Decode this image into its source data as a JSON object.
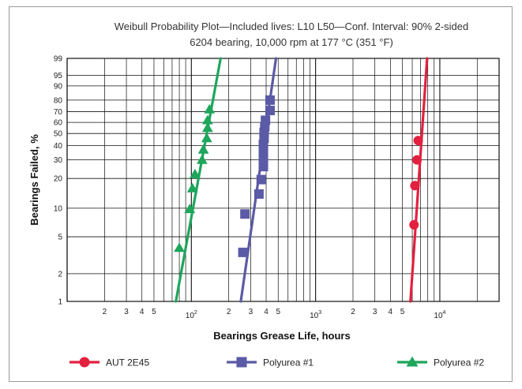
{
  "chart_data": {
    "type": "scatter",
    "title": "Weibull Probability Plot—Included lives: L10 L50—Conf. Interval: 90% 2-sided",
    "subtitle": "6204 bearing, 10,000 rpm at 177 °C (351 °F)",
    "xlabel": "Bearings Grease Life, hours",
    "ylabel": "Bearings Failed, %",
    "x_scale": "log",
    "y_scale": "weibull",
    "xlim": [
      10,
      30000
    ],
    "ylim": [
      1,
      99
    ],
    "grid": true,
    "legend_position": "bottom",
    "y_ticks": [
      1,
      2,
      5,
      10,
      20,
      30,
      40,
      50,
      60,
      70,
      80,
      90,
      95,
      99
    ],
    "y_tick_labels": [
      "1",
      "2",
      "5",
      "10",
      "20",
      "30",
      "40",
      "50",
      "60",
      "70",
      "80",
      "90",
      "95",
      "99"
    ],
    "x_major_ticks": [
      {
        "value": 100,
        "base": "10",
        "exp": "2"
      },
      {
        "value": 1000,
        "base": "10",
        "exp": "3"
      },
      {
        "value": 10000,
        "base": "10",
        "exp": "4"
      }
    ],
    "x_minor_ticks": [
      {
        "value": 20,
        "label": "2"
      },
      {
        "value": 30,
        "label": "3"
      },
      {
        "value": 40,
        "label": "4"
      },
      {
        "value": 50,
        "label": "5"
      },
      {
        "value": 200,
        "label": "2"
      },
      {
        "value": 300,
        "label": "3"
      },
      {
        "value": 400,
        "label": "4"
      },
      {
        "value": 500,
        "label": "5"
      },
      {
        "value": 2000,
        "label": "2"
      },
      {
        "value": 3000,
        "label": "3"
      },
      {
        "value": 4000,
        "label": "4"
      },
      {
        "value": 5000,
        "label": "5"
      }
    ],
    "series": [
      {
        "name": "AUT 2E45",
        "color": "#e4203f",
        "marker": "circle",
        "points": [
          [
            6200,
            6.7
          ],
          [
            6300,
            17
          ],
          [
            6550,
            30
          ],
          [
            6700,
            44
          ]
        ],
        "fit_line": [
          [
            5800,
            1
          ],
          [
            7900,
            99
          ]
        ]
      },
      {
        "name": "Polyurea #1",
        "color": "#5b5aa6",
        "marker": "square",
        "points": [
          [
            260,
            3.4
          ],
          [
            270,
            8.7
          ],
          [
            350,
            14
          ],
          [
            365,
            19.5
          ],
          [
            380,
            26
          ],
          [
            380,
            31
          ],
          [
            380,
            36
          ],
          [
            380,
            41
          ],
          [
            385,
            46
          ],
          [
            385,
            51
          ],
          [
            390,
            56
          ],
          [
            395,
            62
          ],
          [
            430,
            71
          ],
          [
            430,
            80
          ]
        ],
        "fit_line": [
          [
            250,
            1
          ],
          [
            480,
            99
          ]
        ]
      },
      {
        "name": "Polyurea #2",
        "color": "#1ea65b",
        "marker": "triangle",
        "points": [
          [
            80,
            3.8
          ],
          [
            97,
            9.8
          ],
          [
            102,
            16
          ],
          [
            107,
            22
          ],
          [
            122,
            30
          ],
          [
            125,
            37
          ],
          [
            133,
            46
          ],
          [
            135,
            55
          ],
          [
            135,
            62
          ],
          [
            140,
            72
          ]
        ],
        "fit_line": [
          [
            75,
            1
          ],
          [
            172,
            99
          ]
        ]
      }
    ]
  }
}
